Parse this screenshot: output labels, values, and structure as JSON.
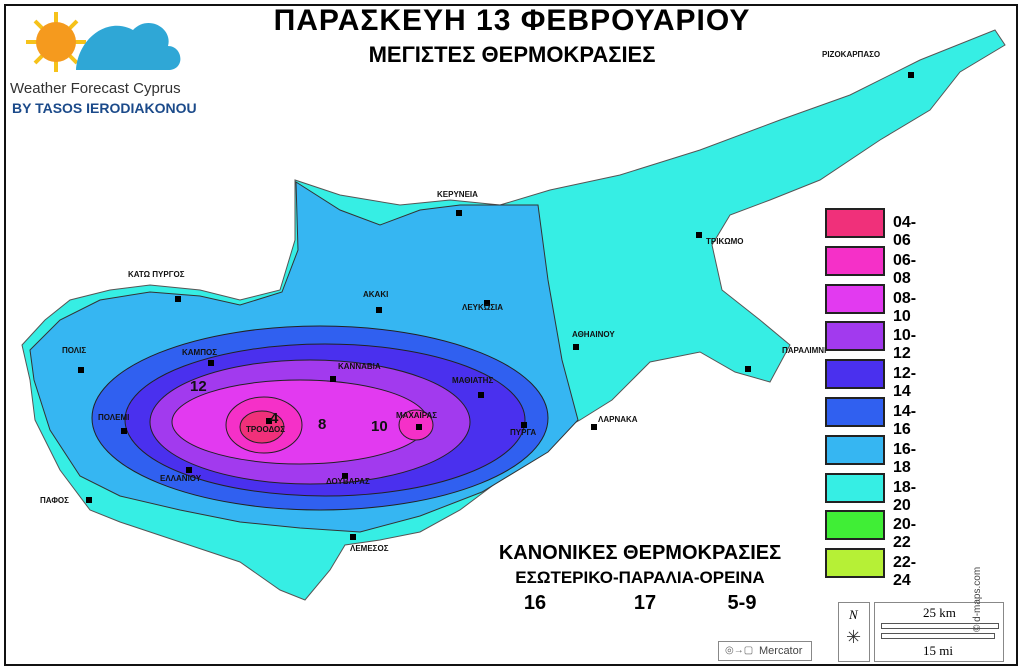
{
  "title": "ΠΑΡΑΣΚΕΥΗ 13 ΦΕΒΡΟΥΑΡΙΟΥ",
  "subtitle": "ΜΕΓΙΣΤΕΣ ΘΕΡΜΟΚΡΑΣΙΕΣ",
  "logo": {
    "line1": "Weather Forecast Cyprus",
    "line2": "BY TASOS IERODIAKONOU"
  },
  "places": [
    "ΡΙΖΟΚΑΡΠΑΣΟ",
    "ΚΕΡΥΝΕΙΑ",
    "ΤΡΙΚΩΜΟ",
    "ΚΑΤΩ ΠΥΡΓΟΣ",
    "ΑΚΑΚΙ",
    "ΛΕΥΚΩΣΙΑ",
    "ΑΘΗΑΙΝΟΥ",
    "ΠΟΛΙΣ",
    "ΚΑΜΠΟΣ",
    "ΚΑΝΝΑΒΙΑ",
    "ΠΑΡΑΛΙΜΝΙ",
    "ΜΑΘΙΑΤΗΣ",
    "ΠΟΛΕΜΙ",
    "ΤΡΟΟΔΟΣ",
    "ΜΑΧΑΙΡΑΣ",
    "ΠΥΡΓΑ",
    "ΛΑΡΝΑΚΑ",
    "ΕΛΛΑΝΙΟΥ",
    "ΔΟΥΒΑΡΑΣ",
    "ΠΑΦΟΣ",
    "ΛΕΜΕΣΟΣ"
  ],
  "isolines": [
    "12",
    "4",
    "8",
    "10"
  ],
  "legend": [
    {
      "label": "04-06",
      "color": "#f0307a"
    },
    {
      "label": "06-08",
      "color": "#f530c8"
    },
    {
      "label": "08-10",
      "color": "#e23af0"
    },
    {
      "label": "10-12",
      "color": "#a23aee"
    },
    {
      "label": "12-14",
      "color": "#4a30ee"
    },
    {
      "label": "14-16",
      "color": "#3060f0"
    },
    {
      "label": "16-18",
      "color": "#36b6f2"
    },
    {
      "label": "18-20",
      "color": "#36eee4"
    },
    {
      "label": "20-22",
      "color": "#40ee36"
    },
    {
      "label": "22-24",
      "color": "#b6f036"
    }
  ],
  "normals": {
    "heading": "ΚΑΝΟΝΙΚΕΣ ΘΕΡΜΟΚΡΑΣΙΕΣ",
    "regions": "ΕΣΩΤΕΡΙΚΟ-ΠΑΡΑΛΙΑ-ΟΡΕΙΝΑ",
    "values": [
      "16",
      "17",
      "5-9"
    ]
  },
  "scale": {
    "north": "N",
    "km": "25 km",
    "mi": "15 mi"
  },
  "projection": "Mercator",
  "credit": "© d-maps.com"
}
